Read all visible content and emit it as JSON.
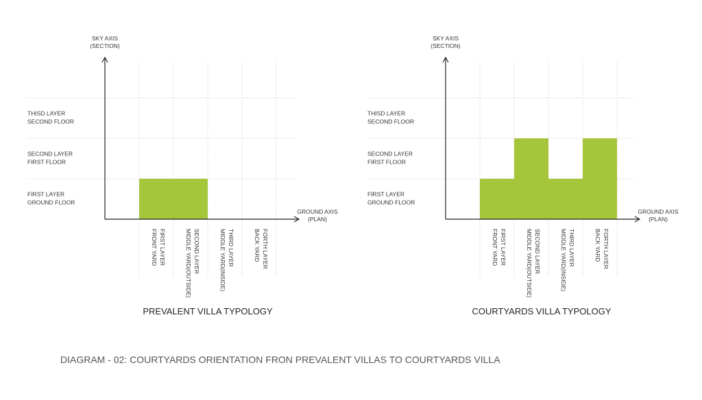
{
  "diagrams": [
    {
      "title": "PREVALENT VILLA TYPOLOGY",
      "sky_axis": [
        "SKY AXIS",
        "(SECTION)"
      ],
      "ground_axis": [
        "GROUND AXIS",
        "(PLAN)"
      ],
      "rows": [
        [
          "THISD LAYER",
          "SECOND FLOOR"
        ],
        [
          "SECOND LAYER",
          "FIRST FLOOR"
        ],
        [
          "FIRST LAYER",
          "GROUND FLOOR"
        ]
      ],
      "columns": [
        [
          "FIRST LAYER",
          "FRONT YARD"
        ],
        [
          "SECOND LAYER",
          "MIDDLE YARD(OUTSIDE)"
        ],
        [
          "THIRD LAYER",
          "MIDDLE YARD(INSIDE)"
        ],
        [
          "FORTH LAYER",
          "BACK YARD"
        ]
      ],
      "filled_levels": [
        1,
        1,
        0,
        0
      ]
    },
    {
      "title": "COURTYARDS VILLA TYPOLOGY",
      "sky_axis": [
        "SKY AXIS",
        "(SECTION)"
      ],
      "ground_axis": [
        "GROUND AXIS",
        "(PLAN)"
      ],
      "rows": [
        [
          "THISD LAYER",
          "SECOND FLOOR"
        ],
        [
          "SECOND LAYER",
          "FIRST FLOOR"
        ],
        [
          "FIRST LAYER",
          "GROUND FLOOR"
        ]
      ],
      "columns": [
        [
          "FIRST LAYER",
          "FRONT YARD"
        ],
        [
          "SECOND LAYER",
          "MIDDLE YARD(OUTSIDE)"
        ],
        [
          "THIRD LAYER",
          "MIDDLE YARD(INSIDE)"
        ],
        [
          "FORTH LAYER",
          "BACK YARD"
        ]
      ],
      "filled_levels": [
        1,
        2,
        1,
        2
      ]
    }
  ],
  "caption": "DIAGRAM - 02: COURTYARDS ORIENTATION FRON PREVALENT VILLAS TO COURTYARDS VILLA",
  "colors": {
    "fill": "#a5c63b",
    "axis": "#222222",
    "grid": "#cfcfcf"
  }
}
